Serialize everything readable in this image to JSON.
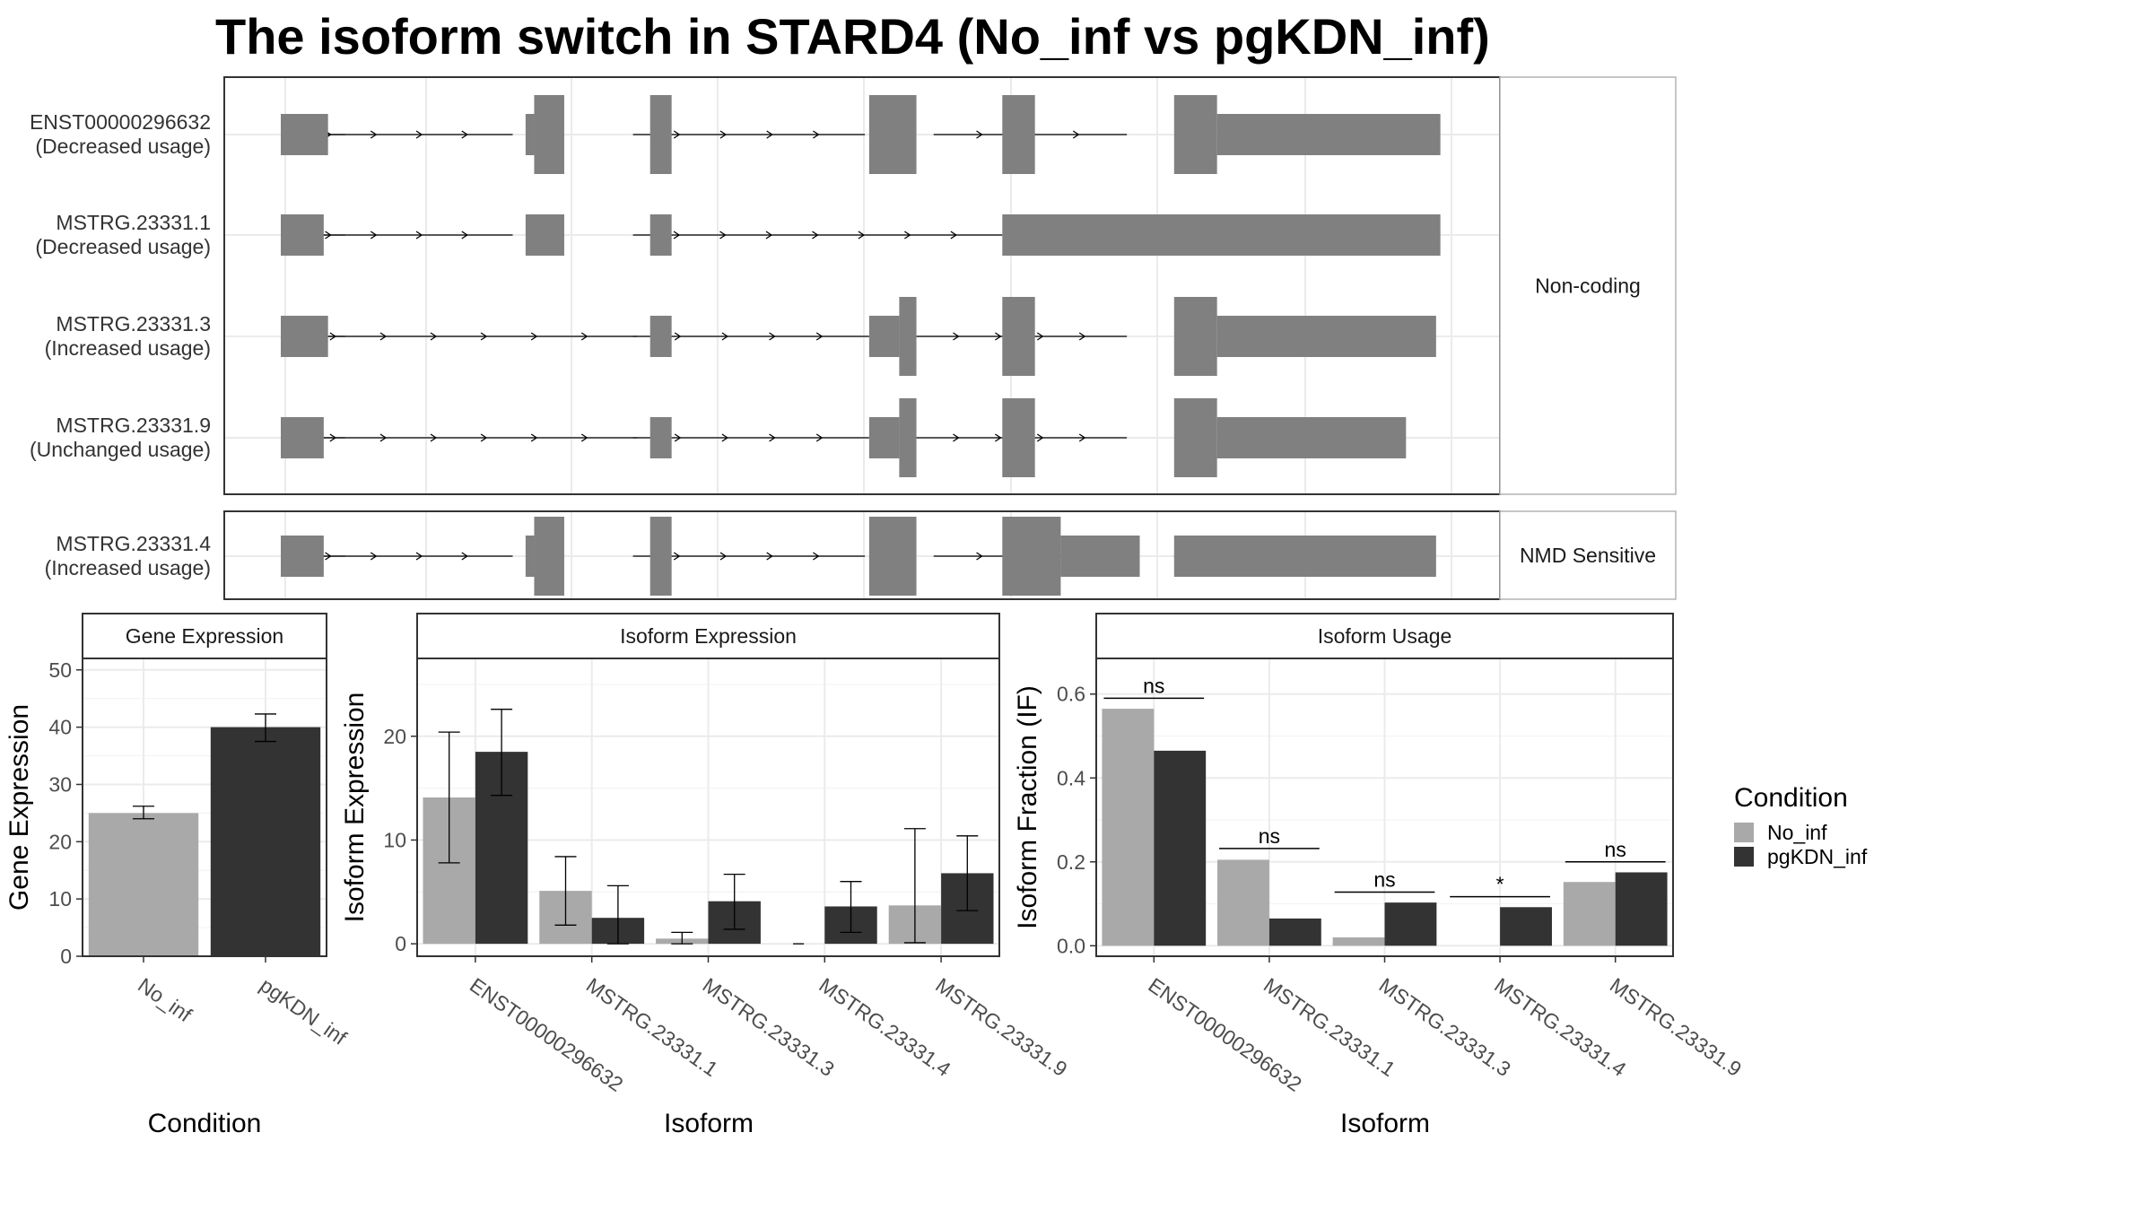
{
  "title": "The isoform switch in STARD4 (No_inf vs pgKDN_inf)",
  "colors": {
    "no_inf": "#a9a9a9",
    "pgkdn_inf": "#333333",
    "exon": "#808080",
    "grid": "#ebebeb",
    "panel_border": "#333333",
    "strip_border": "#b3b3b3"
  },
  "transcripts": {
    "panels": [
      {
        "label": "Non-coding",
        "rows": [
          {
            "id": "ENST00000296632",
            "usage": "(Decreased usage)",
            "introns": [
              [
                5,
                75
              ],
              [
                5,
                270
              ],
              [
                410,
                680
              ],
              [
                760,
                985
              ],
              [
                1140,
                1290
              ]
            ],
            "exons": [
              {
                "s": 0,
                "e": 55,
                "h": "s"
              },
              {
                "s": 285,
                "e": 295,
                "h": "s"
              },
              {
                "s": 295,
                "e": 330,
                "h": "t"
              },
              {
                "s": 430,
                "e": 455,
                "h": "t"
              },
              {
                "s": 685,
                "e": 740,
                "h": "t"
              },
              {
                "s": 840,
                "e": 878,
                "h": "t"
              },
              {
                "s": 1040,
                "e": 1090,
                "h": "t"
              },
              {
                "s": 1090,
                "e": 1350,
                "h": "s"
              }
            ]
          },
          {
            "id": "MSTRG.23331.1",
            "usage": "(Decreased usage)",
            "introns": [
              [
                5,
                75
              ],
              [
                5,
                270
              ],
              [
                410,
                840
              ]
            ],
            "exons": [
              {
                "s": 0,
                "e": 50,
                "h": "s"
              },
              {
                "s": 285,
                "e": 330,
                "h": "s"
              },
              {
                "s": 430,
                "e": 455,
                "h": "s"
              },
              {
                "s": 840,
                "e": 1350,
                "h": "s"
              }
            ]
          },
          {
            "id": "MSTRG.23331.3",
            "usage": "(Increased usage)",
            "introns": [
              [
                5,
                75
              ],
              [
                5,
                415
              ],
              [
                410,
                685
              ],
              [
                740,
                985
              ],
              [
                1140,
                1290
              ]
            ],
            "exons": [
              {
                "s": 0,
                "e": 55,
                "h": "s"
              },
              {
                "s": 430,
                "e": 455,
                "h": "s"
              },
              {
                "s": 685,
                "e": 720,
                "h": "s"
              },
              {
                "s": 720,
                "e": 740,
                "h": "t"
              },
              {
                "s": 840,
                "e": 878,
                "h": "t"
              },
              {
                "s": 1040,
                "e": 1090,
                "h": "t"
              },
              {
                "s": 1090,
                "e": 1345,
                "h": "s"
              }
            ]
          },
          {
            "id": "MSTRG.23331.9",
            "usage": "(Unchanged usage)",
            "introns": [
              [
                5,
                75
              ],
              [
                5,
                415
              ],
              [
                410,
                685
              ],
              [
                740,
                985
              ],
              [
                1140,
                1290
              ]
            ],
            "exons": [
              {
                "s": 0,
                "e": 50,
                "h": "s"
              },
              {
                "s": 430,
                "e": 455,
                "h": "s"
              },
              {
                "s": 685,
                "e": 720,
                "h": "s"
              },
              {
                "s": 720,
                "e": 740,
                "h": "t"
              },
              {
                "s": 840,
                "e": 878,
                "h": "t"
              },
              {
                "s": 1040,
                "e": 1090,
                "h": "t"
              },
              {
                "s": 1090,
                "e": 1310,
                "h": "s"
              }
            ]
          }
        ]
      },
      {
        "label": "NMD Sensitive",
        "rows": [
          {
            "id": "MSTRG.23331.4",
            "usage": "(Increased usage)",
            "introns": [
              [
                5,
                75
              ],
              [
                5,
                270
              ],
              [
                410,
                680
              ],
              [
                760,
                985
              ],
              [
                1040,
                1290
              ]
            ],
            "exons": [
              {
                "s": 0,
                "e": 50,
                "h": "s"
              },
              {
                "s": 285,
                "e": 295,
                "h": "s"
              },
              {
                "s": 295,
                "e": 330,
                "h": "t"
              },
              {
                "s": 430,
                "e": 455,
                "h": "t"
              },
              {
                "s": 685,
                "e": 740,
                "h": "t"
              },
              {
                "s": 840,
                "e": 908,
                "h": "t"
              },
              {
                "s": 908,
                "e": 1000,
                "h": "s"
              },
              {
                "s": 1040,
                "e": 1345,
                "h": "s"
              }
            ]
          }
        ]
      }
    ]
  },
  "chart_data": [
    {
      "type": "bar",
      "title": "Gene Expression",
      "xlabel": "Condition",
      "ylabel": "Gene Expression",
      "ylim": [
        0,
        52
      ],
      "yticks": [
        0,
        10,
        20,
        30,
        40,
        50
      ],
      "categories": [
        "No_inf",
        "pgKDN_inf"
      ],
      "values": [
        25,
        40
      ],
      "errors": [
        [
          24,
          26.2
        ],
        [
          37.5,
          42.3
        ]
      ]
    },
    {
      "type": "bar",
      "title": "Isoform Expression",
      "xlabel": "Isoform",
      "ylabel": "Isoform Expression",
      "ylim": [
        -1.2,
        27.5
      ],
      "yticks": [
        0,
        10,
        20
      ],
      "categories": [
        "ENST00000296632",
        "MSTRG.23331.1",
        "MSTRG.23331.3",
        "MSTRG.23331.4",
        "MSTRG.23331.9"
      ],
      "series": [
        {
          "name": "No_inf",
          "values": [
            14.1,
            5.1,
            0.5,
            0.0,
            3.7
          ],
          "errors": [
            [
              7.8,
              20.4
            ],
            [
              1.8,
              8.4
            ],
            [
              0.0,
              1.1
            ],
            [
              0.0,
              0.0
            ],
            [
              0.1,
              11.1
            ]
          ]
        },
        {
          "name": "pgKDN_inf",
          "values": [
            18.5,
            2.5,
            4.1,
            3.6,
            6.8
          ],
          "errors": [
            [
              14.3,
              22.6
            ],
            [
              0.0,
              5.6
            ],
            [
              1.4,
              6.7
            ],
            [
              1.1,
              6.0
            ],
            [
              3.2,
              10.4
            ]
          ]
        }
      ]
    },
    {
      "type": "bar",
      "title": "Isoform Usage",
      "xlabel": "Isoform",
      "ylabel": "Isoform Fraction (IF)",
      "ylim": [
        -0.025,
        0.685
      ],
      "yticks": [
        0.0,
        0.2,
        0.4,
        0.6
      ],
      "ytick_labels": [
        "0.0",
        "0.2",
        "0.4",
        "0.6"
      ],
      "categories": [
        "ENST00000296632",
        "MSTRG.23331.1",
        "MSTRG.23331.3",
        "MSTRG.23331.4",
        "MSTRG.23331.9"
      ],
      "series": [
        {
          "name": "No_inf",
          "values": [
            0.565,
            0.205,
            0.02,
            0.0,
            0.152
          ]
        },
        {
          "name": "pgKDN_inf",
          "values": [
            0.465,
            0.065,
            0.103,
            0.092,
            0.175
          ]
        }
      ],
      "significance": [
        {
          "label": "ns",
          "y": 0.59
        },
        {
          "label": "ns",
          "y": 0.232
        },
        {
          "label": "ns",
          "y": 0.128
        },
        {
          "label": "*",
          "y": 0.117
        },
        {
          "label": "ns",
          "y": 0.2
        }
      ]
    }
  ],
  "legend": {
    "title": "Condition",
    "items": [
      {
        "label": "No_inf",
        "color": "#a9a9a9"
      },
      {
        "label": "pgKDN_inf",
        "color": "#333333"
      }
    ]
  }
}
